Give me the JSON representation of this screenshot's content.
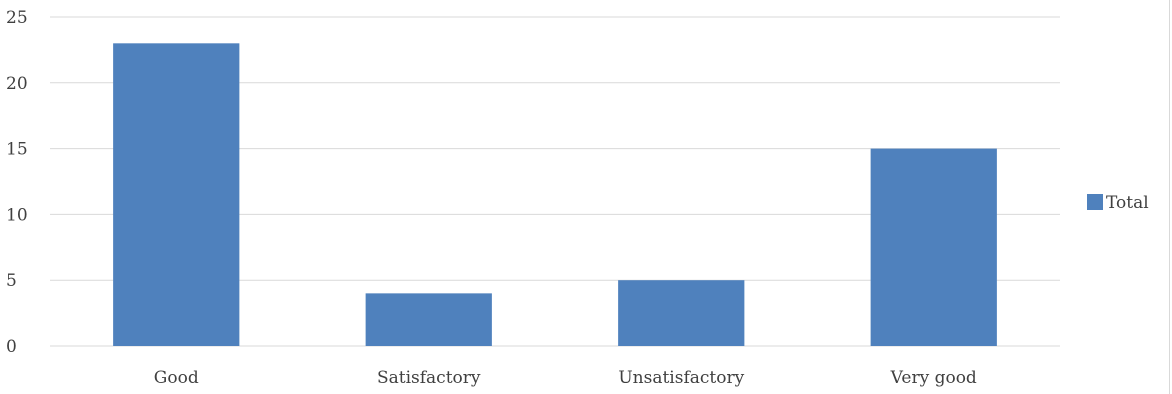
{
  "chart_data": {
    "type": "bar",
    "categories": [
      "Good",
      "Satisfactory",
      "Unsatisfactory",
      "Very good"
    ],
    "series": [
      {
        "name": "Total",
        "values": [
          23,
          4,
          5,
          15
        ],
        "color": "#4f81bd"
      }
    ],
    "title": "",
    "xlabel": "",
    "ylabel": "",
    "ylim": [
      0,
      25
    ],
    "yticks": [
      0,
      5,
      10,
      15,
      20,
      25
    ],
    "grid": true,
    "legend": "right",
    "gridline_color": "#d9d9d9",
    "text_color": "#404040"
  }
}
